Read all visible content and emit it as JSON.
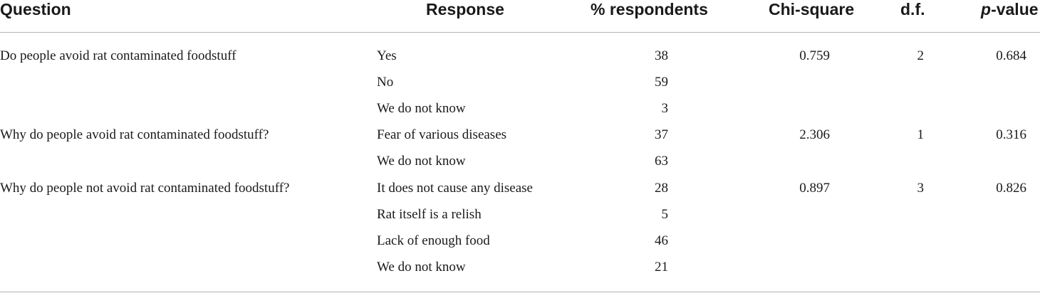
{
  "headers": {
    "question": "Question",
    "response": "Response",
    "pct": "% respondents",
    "chi": "Chi-square",
    "df": "d.f.",
    "p_italic": "p",
    "p_rest": "-value"
  },
  "rows": [
    {
      "question": "Do people avoid rat contaminated foodstuff",
      "response": "Yes",
      "pct": "38",
      "chi": "0.759",
      "df": "2",
      "p": "0.684"
    },
    {
      "question": "",
      "response": "No",
      "pct": "59",
      "chi": "",
      "df": "",
      "p": ""
    },
    {
      "question": "",
      "response": "We do not know",
      "pct": "3",
      "chi": "",
      "df": "",
      "p": ""
    },
    {
      "question": "Why do people avoid rat contaminated foodstuff?",
      "response": "Fear of various diseases",
      "pct": "37",
      "chi": "2.306",
      "df": "1",
      "p": "0.316"
    },
    {
      "question": "",
      "response": "We do not know",
      "pct": "63",
      "chi": "",
      "df": "",
      "p": ""
    },
    {
      "question": "Why do people not avoid rat contaminated foodstuff?",
      "response": "It does not cause any disease",
      "pct": "28",
      "chi": "0.897",
      "df": "3",
      "p": "0.826"
    },
    {
      "question": "",
      "response": "Rat itself is a relish",
      "pct": "5",
      "chi": "",
      "df": "",
      "p": ""
    },
    {
      "question": "",
      "response": "Lack of enough food",
      "pct": "46",
      "chi": "",
      "df": "",
      "p": ""
    },
    {
      "question": "",
      "response": "We do not know",
      "pct": "21",
      "chi": "",
      "df": "",
      "p": ""
    }
  ]
}
